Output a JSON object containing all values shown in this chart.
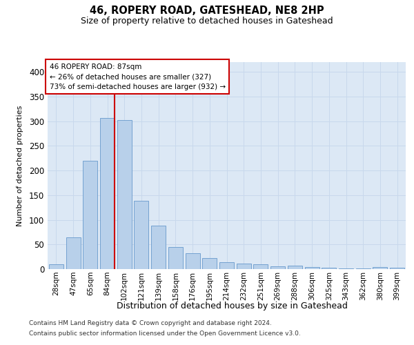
{
  "title": "46, ROPERY ROAD, GATESHEAD, NE8 2HP",
  "subtitle": "Size of property relative to detached houses in Gateshead",
  "xlabel": "Distribution of detached houses by size in Gateshead",
  "ylabel": "Number of detached properties",
  "categories": [
    "28sqm",
    "47sqm",
    "65sqm",
    "84sqm",
    "102sqm",
    "121sqm",
    "139sqm",
    "158sqm",
    "176sqm",
    "195sqm",
    "214sqm",
    "232sqm",
    "251sqm",
    "269sqm",
    "288sqm",
    "306sqm",
    "325sqm",
    "343sqm",
    "362sqm",
    "380sqm",
    "399sqm"
  ],
  "values": [
    10,
    65,
    220,
    307,
    303,
    138,
    88,
    45,
    32,
    22,
    14,
    11,
    10,
    5,
    7,
    4,
    3,
    2,
    1,
    4,
    3
  ],
  "bar_color": "#b8d0ea",
  "bar_edge_color": "#6699cc",
  "red_line_x": 3.42,
  "red_line_label": "46 ROPERY ROAD: 87sqm",
  "annotation_line1": "← 26% of detached houses are smaller (327)",
  "annotation_line2": "73% of semi-detached houses are larger (932) →",
  "annotation_box_facecolor": "#ffffff",
  "annotation_box_edgecolor": "#cc0000",
  "ylim": [
    0,
    420
  ],
  "yticks": [
    0,
    50,
    100,
    150,
    200,
    250,
    300,
    350,
    400
  ],
  "grid_color": "#c8d8ec",
  "bg_color": "#dce8f5",
  "title_fontsize": 10.5,
  "subtitle_fontsize": 9,
  "footer1": "Contains HM Land Registry data © Crown copyright and database right 2024.",
  "footer2": "Contains public sector information licensed under the Open Government Licence v3.0.",
  "footer_fontsize": 6.5
}
